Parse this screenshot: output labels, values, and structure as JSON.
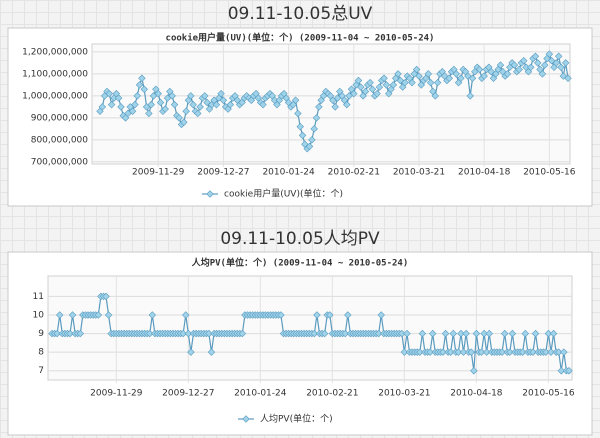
{
  "chart_data": [
    {
      "type": "line",
      "heading": "09.11-10.05总UV",
      "title": "cookie用户量(UV)(单位：个) (2009-11-04 ~ 2010-05-24)",
      "categories": [
        null,
        null,
        null,
        null,
        null,
        null,
        null,
        null,
        null,
        null,
        null,
        null,
        null,
        null,
        null,
        null,
        null,
        null,
        null,
        null,
        null,
        null,
        null,
        null,
        null,
        "2009-11-29",
        null,
        null,
        null,
        null,
        null,
        null,
        null,
        null,
        null,
        null,
        null,
        null,
        null,
        null,
        null,
        null,
        null,
        null,
        null,
        null,
        null,
        null,
        null,
        null,
        null,
        null,
        null,
        "2009-12-27",
        null,
        null,
        null,
        null,
        null,
        null,
        null,
        null,
        null,
        null,
        null,
        null,
        null,
        null,
        null,
        null,
        null,
        null,
        null,
        null,
        null,
        null,
        null,
        null,
        null,
        null,
        null,
        "2010-01-24",
        null,
        null,
        null,
        null,
        null,
        null,
        null,
        null,
        null,
        null,
        null,
        null,
        null,
        null,
        null,
        null,
        null,
        null,
        null,
        null,
        null,
        null,
        null,
        null,
        null,
        null,
        null,
        "2010-02-21",
        null,
        null,
        null,
        null,
        null,
        null,
        null,
        null,
        null,
        null,
        null,
        null,
        null,
        null,
        null,
        null,
        null,
        null,
        null,
        null,
        null,
        null,
        null,
        null,
        null,
        null,
        null,
        "2010-03-21",
        null,
        null,
        null,
        null,
        null,
        null,
        null,
        null,
        null,
        null,
        null,
        null,
        null,
        null,
        null,
        null,
        null,
        null,
        null,
        null,
        null,
        null,
        null,
        null,
        null,
        null,
        null,
        "2010-04-18",
        null,
        null,
        null,
        null,
        null,
        null,
        null,
        null,
        null,
        null,
        null,
        null,
        null,
        null,
        null,
        null,
        null,
        null,
        null,
        null,
        null,
        null,
        null,
        null,
        null,
        null,
        null,
        "2010-05-16",
        null,
        null,
        null,
        null,
        null,
        null,
        null,
        null
      ],
      "series": [
        {
          "name": "cookie用户量(UV)(单位：个)",
          "color": "#5b9bbf",
          "marker_color": "#9fd3ea",
          "values": [
            930000000,
            950000000,
            1000000000,
            1020000000,
            1010000000,
            960000000,
            990000000,
            1010000000,
            990000000,
            950000000,
            910000000,
            900000000,
            920000000,
            950000000,
            930000000,
            960000000,
            1000000000,
            1050000000,
            1080000000,
            1030000000,
            950000000,
            920000000,
            960000000,
            1000000000,
            1030000000,
            1010000000,
            970000000,
            930000000,
            940000000,
            990000000,
            1020000000,
            1000000000,
            960000000,
            910000000,
            900000000,
            870000000,
            880000000,
            930000000,
            980000000,
            1000000000,
            960000000,
            930000000,
            920000000,
            950000000,
            990000000,
            1000000000,
            970000000,
            940000000,
            960000000,
            980000000,
            960000000,
            990000000,
            1010000000,
            980000000,
            950000000,
            940000000,
            960000000,
            990000000,
            1000000000,
            980000000,
            960000000,
            970000000,
            990000000,
            1000000000,
            990000000,
            980000000,
            1000000000,
            1010000000,
            990000000,
            970000000,
            960000000,
            990000000,
            1000000000,
            1010000000,
            1000000000,
            980000000,
            960000000,
            980000000,
            1000000000,
            1010000000,
            990000000,
            970000000,
            950000000,
            960000000,
            980000000,
            920000000,
            860000000,
            820000000,
            780000000,
            760000000,
            770000000,
            800000000,
            850000000,
            900000000,
            950000000,
            980000000,
            1000000000,
            1020000000,
            1010000000,
            1000000000,
            980000000,
            950000000,
            990000000,
            1020000000,
            1000000000,
            980000000,
            960000000,
            1000000000,
            1030000000,
            1010000000,
            1050000000,
            1070000000,
            1040000000,
            1000000000,
            1020000000,
            1050000000,
            1060000000,
            1030000000,
            1000000000,
            1010000000,
            1040000000,
            1070000000,
            1080000000,
            1050000000,
            1010000000,
            1030000000,
            1050000000,
            1080000000,
            1100000000,
            1070000000,
            1040000000,
            1060000000,
            1090000000,
            1080000000,
            1060000000,
            1100000000,
            1120000000,
            1090000000,
            1050000000,
            1070000000,
            1080000000,
            1100000000,
            1060000000,
            1020000000,
            1000000000,
            1060000000,
            1100000000,
            1110000000,
            1090000000,
            1070000000,
            1080000000,
            1110000000,
            1120000000,
            1100000000,
            1060000000,
            1080000000,
            1120000000,
            1110000000,
            1090000000,
            1000000000,
            1080000000,
            1110000000,
            1130000000,
            1120000000,
            1080000000,
            1090000000,
            1120000000,
            1130000000,
            1110000000,
            1080000000,
            1100000000,
            1120000000,
            1140000000,
            1110000000,
            1090000000,
            1100000000,
            1130000000,
            1150000000,
            1140000000,
            1110000000,
            1120000000,
            1150000000,
            1160000000,
            1130000000,
            1110000000,
            1130000000,
            1170000000,
            1180000000,
            1150000000,
            1120000000,
            1100000000,
            1140000000,
            1170000000,
            1190000000,
            1160000000,
            1130000000,
            1150000000,
            1180000000,
            1130000000,
            1090000000,
            1150000000,
            1080000000
          ]
        }
      ],
      "ylim": [
        690000000,
        1236000000
      ],
      "yticks": [
        {
          "value": 700000000,
          "label": "700,000,000"
        },
        {
          "value": 800000000,
          "label": "800,000,000"
        },
        {
          "value": 900000000,
          "label": "900,000,000"
        },
        {
          "value": 1000000000,
          "label": "1,000,000,000"
        },
        {
          "value": 1100000000,
          "label": "1,100,000,000"
        },
        {
          "value": 1200000000,
          "label": "1,200,000,000"
        }
      ],
      "grid": true,
      "legend": "bottom"
    },
    {
      "type": "line",
      "heading": "09.11-10.05人均PV",
      "title": "人均PV(单位：个) (2009-11-04 ~ 2010-05-24)",
      "categories": [
        null,
        null,
        null,
        null,
        null,
        null,
        null,
        null,
        null,
        null,
        null,
        null,
        null,
        null,
        null,
        null,
        null,
        null,
        null,
        null,
        null,
        null,
        null,
        null,
        null,
        "2009-11-29",
        null,
        null,
        null,
        null,
        null,
        null,
        null,
        null,
        null,
        null,
        null,
        null,
        null,
        null,
        null,
        null,
        null,
        null,
        null,
        null,
        null,
        null,
        null,
        null,
        null,
        null,
        null,
        "2009-12-27",
        null,
        null,
        null,
        null,
        null,
        null,
        null,
        null,
        null,
        null,
        null,
        null,
        null,
        null,
        null,
        null,
        null,
        null,
        null,
        null,
        null,
        null,
        null,
        null,
        null,
        null,
        null,
        "2010-01-24",
        null,
        null,
        null,
        null,
        null,
        null,
        null,
        null,
        null,
        null,
        null,
        null,
        null,
        null,
        null,
        null,
        null,
        null,
        null,
        null,
        null,
        null,
        null,
        null,
        null,
        null,
        null,
        "2010-02-21",
        null,
        null,
        null,
        null,
        null,
        null,
        null,
        null,
        null,
        null,
        null,
        null,
        null,
        null,
        null,
        null,
        null,
        null,
        null,
        null,
        null,
        null,
        null,
        null,
        null,
        null,
        null,
        "2010-03-21",
        null,
        null,
        null,
        null,
        null,
        null,
        null,
        null,
        null,
        null,
        null,
        null,
        null,
        null,
        null,
        null,
        null,
        null,
        null,
        null,
        null,
        null,
        null,
        null,
        null,
        null,
        null,
        "2010-04-18",
        null,
        null,
        null,
        null,
        null,
        null,
        null,
        null,
        null,
        null,
        null,
        null,
        null,
        null,
        null,
        null,
        null,
        null,
        null,
        null,
        null,
        null,
        null,
        null,
        null,
        null,
        null,
        "2010-05-16",
        null,
        null,
        null,
        null,
        null,
        null,
        null,
        null
      ],
      "series": [
        {
          "name": "人均PV(单位：个)",
          "color": "#5b9bbf",
          "marker_color": "#9fd3ea",
          "values": [
            9,
            9,
            9,
            10,
            9,
            9,
            9,
            9,
            10,
            9,
            9,
            9,
            10,
            10,
            10,
            10,
            10,
            10,
            10,
            11,
            11,
            11,
            10,
            9,
            9,
            9,
            9,
            9,
            9,
            9,
            9,
            9,
            9,
            9,
            9,
            9,
            9,
            9,
            9,
            10,
            9,
            9,
            9,
            9,
            9,
            9,
            9,
            9,
            9,
            9,
            9,
            9,
            10,
            9,
            8,
            9,
            9,
            9,
            9,
            9,
            9,
            9,
            8,
            9,
            9,
            9,
            9,
            9,
            9,
            9,
            9,
            9,
            9,
            9,
            9,
            10,
            10,
            10,
            10,
            10,
            10,
            10,
            10,
            10,
            10,
            10,
            10,
            10,
            10,
            10,
            9,
            9,
            9,
            9,
            9,
            9,
            9,
            9,
            9,
            9,
            9,
            9,
            9,
            10,
            9,
            9,
            9,
            10,
            10,
            9,
            9,
            9,
            9,
            9,
            9,
            10,
            9,
            9,
            9,
            9,
            9,
            9,
            9,
            9,
            9,
            9,
            9,
            9,
            10,
            9,
            9,
            9,
            9,
            9,
            9,
            9,
            9,
            8,
            9,
            8,
            8,
            8,
            8,
            8,
            9,
            8,
            8,
            8,
            9,
            8,
            8,
            8,
            8,
            9,
            8,
            8,
            9,
            8,
            8,
            9,
            8,
            9,
            8,
            8,
            7,
            9,
            8,
            8,
            9,
            8,
            9,
            8,
            8,
            8,
            8,
            8,
            9,
            8,
            8,
            9,
            8,
            8,
            8,
            8,
            9,
            8,
            8,
            8,
            9,
            8,
            8,
            8,
            8,
            9,
            8,
            9,
            8,
            8,
            7,
            8,
            7,
            7
          ]
        }
      ],
      "ylim": [
        6.5,
        12.1
      ],
      "yticks": [
        7,
        8,
        9,
        10,
        11
      ],
      "grid": true,
      "legend": "bottom"
    }
  ]
}
